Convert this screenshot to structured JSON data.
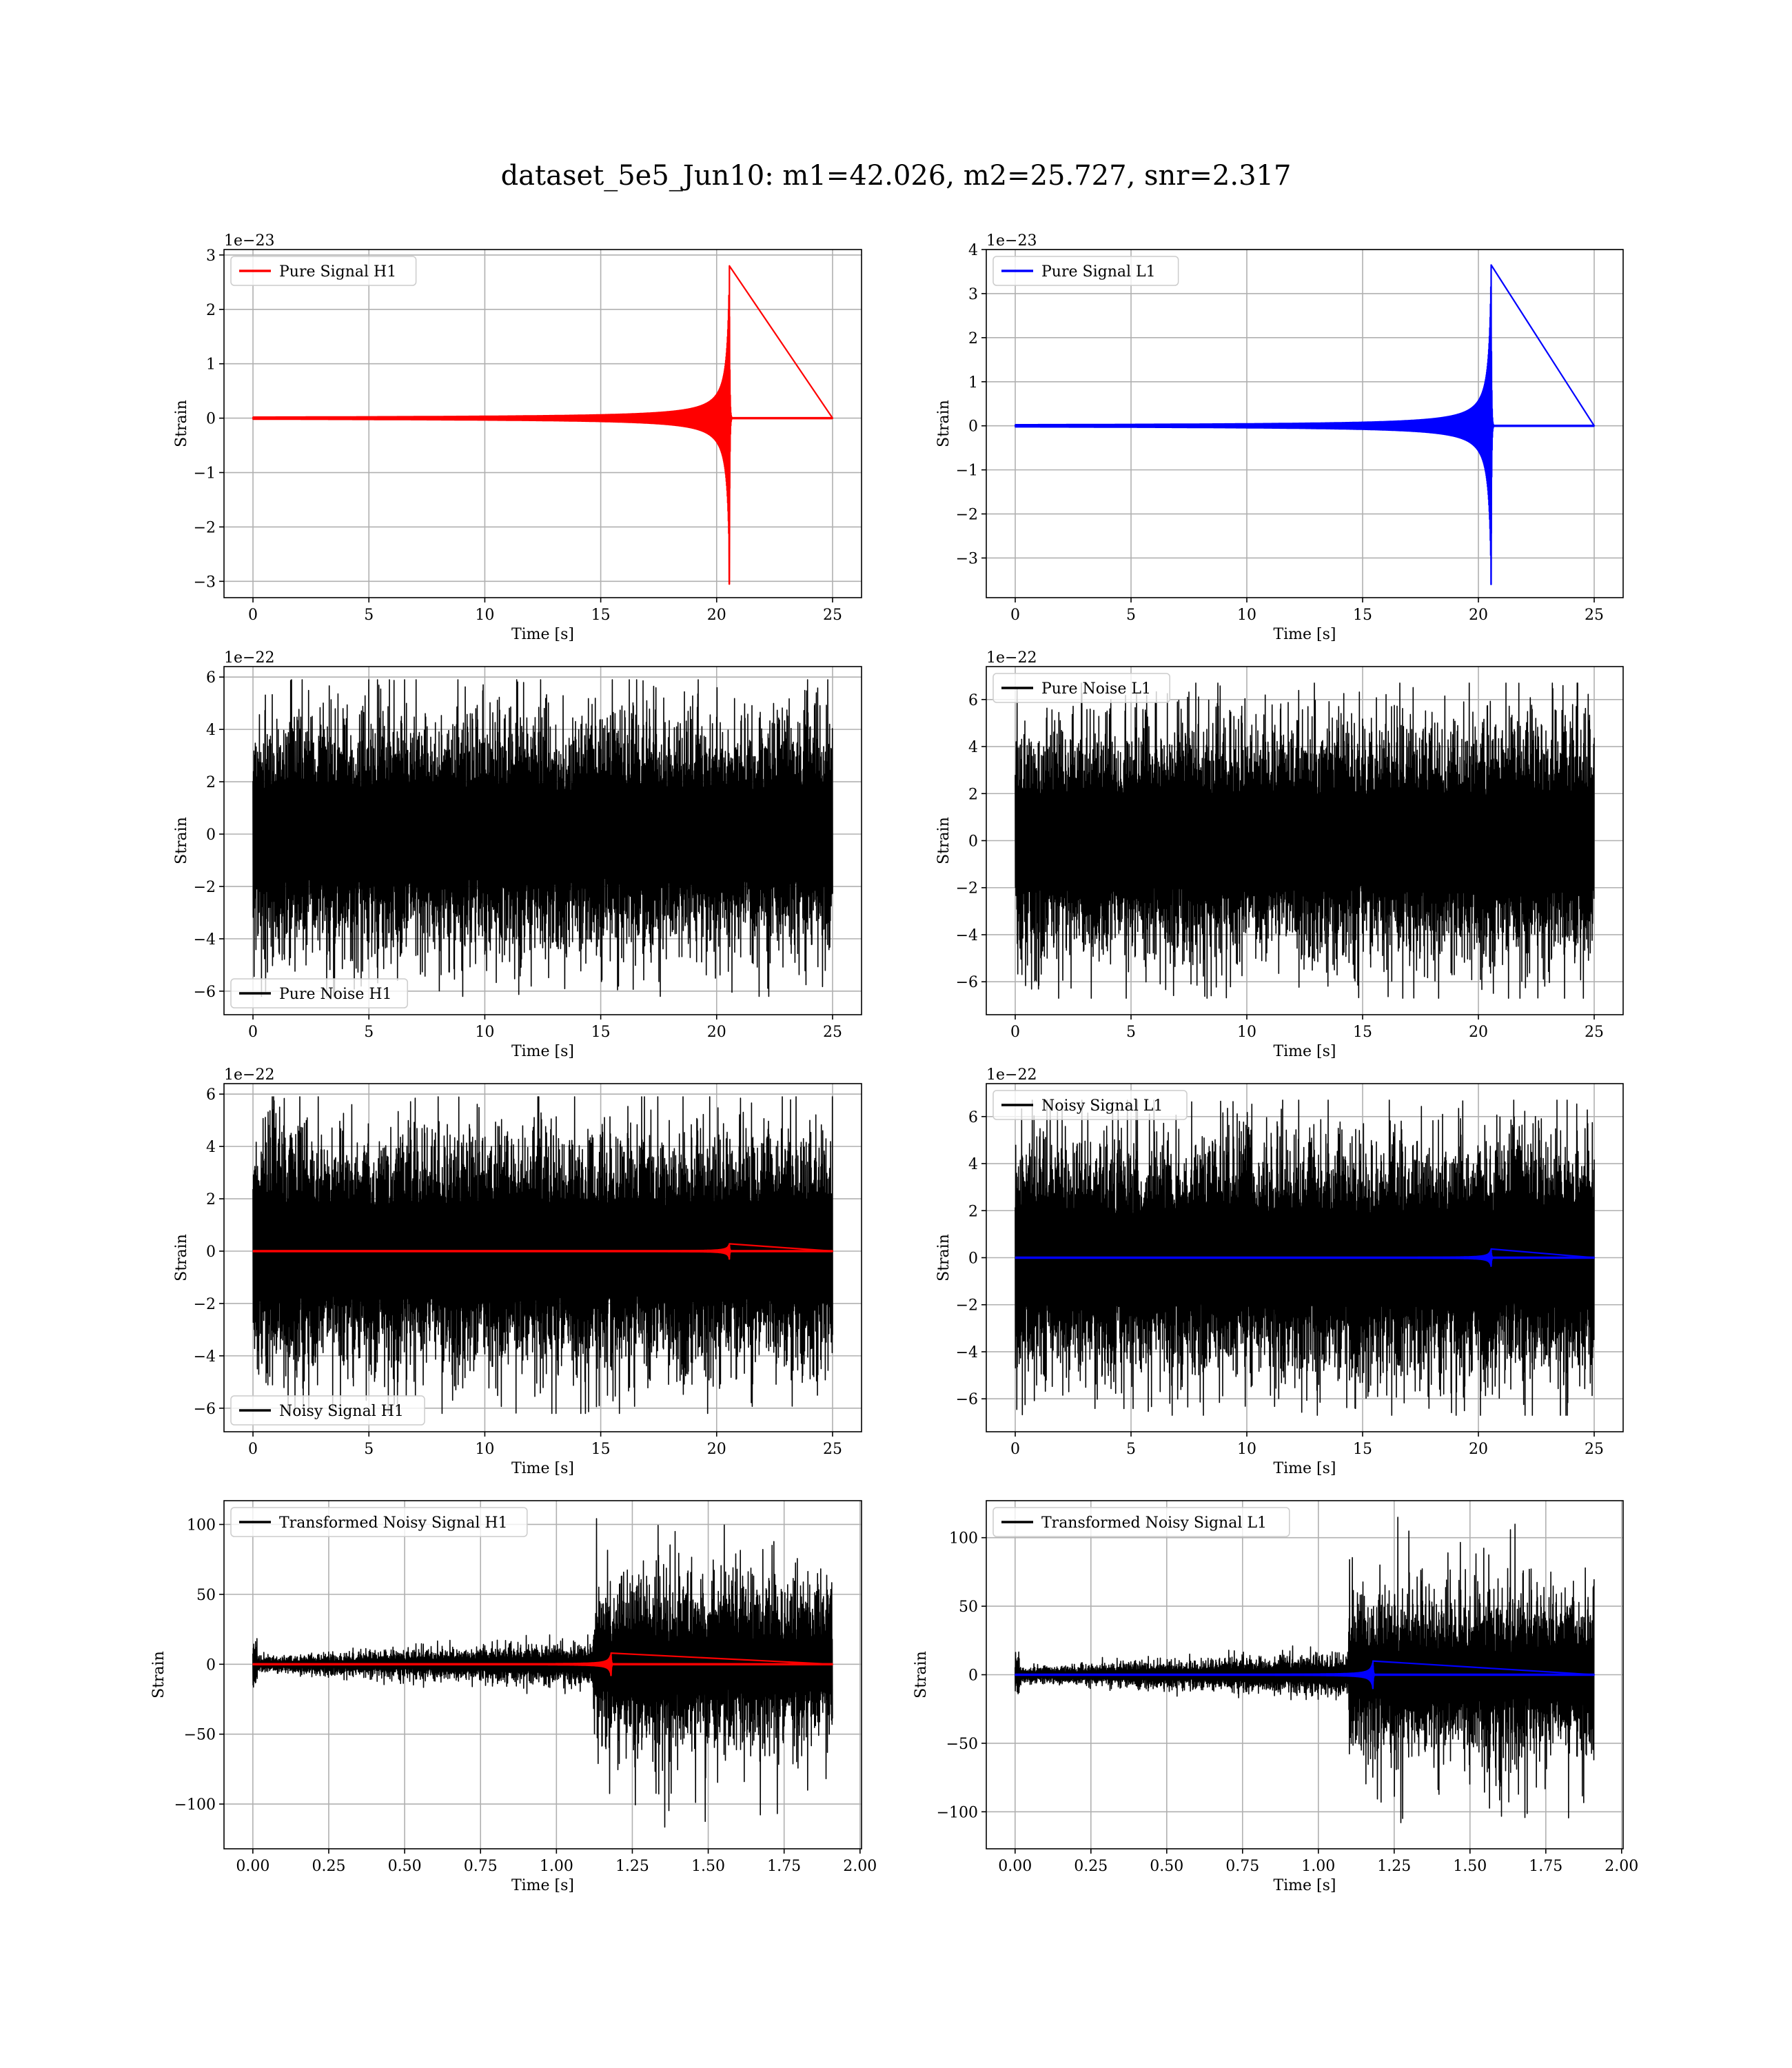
{
  "figure": {
    "suptitle": "dataset_5e5_Jun10: m1=42.026, m2=25.727, snr=2.317"
  },
  "colors": {
    "signal_h1": "#ff0000",
    "signal_l1": "#0000ff",
    "noise": "#000000",
    "grid": "#b0b0b0"
  },
  "chart_data": [
    {
      "type": "line",
      "legend": "Pure Signal H1",
      "legend_loc": "upper left",
      "xlabel": "Time [s]",
      "ylabel": "Strain",
      "offset_text": "1e−23",
      "grid": true,
      "xlim": [
        -1.25,
        26.25
      ],
      "ylim": [
        -3.3,
        3.1
      ],
      "xticks": [
        0,
        5,
        10,
        15,
        20,
        25
      ],
      "xtick_labels": [
        "0",
        "5",
        "10",
        "15",
        "20",
        "25"
      ],
      "yticks": [
        -3,
        -2,
        -1,
        0,
        1,
        2,
        3
      ],
      "ytick_labels": [
        "−3",
        "−2",
        "−1",
        "0",
        "1",
        "2",
        "3"
      ],
      "series": [
        {
          "kind": "chirp",
          "color": "#ff0000",
          "x_start": 0,
          "x_end": 25,
          "merger_time": 20.55,
          "peak_amplitude": 2.8,
          "peak_min": -3.05
        }
      ]
    },
    {
      "type": "line",
      "legend": "Pure Signal L1",
      "legend_loc": "upper left",
      "xlabel": "Time [s]",
      "ylabel": "Strain",
      "offset_text": "1e−23",
      "grid": true,
      "xlim": [
        -1.25,
        26.25
      ],
      "ylim": [
        -3.9,
        4.0
      ],
      "xticks": [
        0,
        5,
        10,
        15,
        20,
        25
      ],
      "xtick_labels": [
        "0",
        "5",
        "10",
        "15",
        "20",
        "25"
      ],
      "yticks": [
        -3,
        -2,
        -1,
        0,
        1,
        2,
        3,
        4
      ],
      "ytick_labels": [
        "−3",
        "−2",
        "−1",
        "0",
        "1",
        "2",
        "3",
        "4"
      ],
      "series": [
        {
          "kind": "chirp",
          "color": "#0000ff",
          "x_start": 0,
          "x_end": 25,
          "merger_time": 20.55,
          "peak_amplitude": 3.65,
          "peak_min": -3.6
        }
      ]
    },
    {
      "type": "line",
      "legend": "Pure Noise H1",
      "legend_loc": "lower left",
      "xlabel": "Time [s]",
      "ylabel": "Strain",
      "offset_text": "1e−22",
      "grid": true,
      "xlim": [
        -1.25,
        26.25
      ],
      "ylim": [
        -6.9,
        6.4
      ],
      "xticks": [
        0,
        5,
        10,
        15,
        20,
        25
      ],
      "xtick_labels": [
        "0",
        "5",
        "10",
        "15",
        "20",
        "25"
      ],
      "yticks": [
        -6,
        -4,
        -2,
        0,
        2,
        4,
        6
      ],
      "ytick_labels": [
        "−6",
        "−4",
        "−2",
        "0",
        "2",
        "4",
        "6"
      ],
      "series": [
        {
          "kind": "noise",
          "color": "#000000",
          "x_start": 0,
          "x_end": 25,
          "band": 3.0,
          "max": 5.9,
          "min": -6.2
        }
      ]
    },
    {
      "type": "line",
      "legend": "Pure Noise L1",
      "legend_loc": "upper left",
      "xlabel": "Time [s]",
      "ylabel": "Strain",
      "offset_text": "1e−22",
      "grid": true,
      "xlim": [
        -1.25,
        26.25
      ],
      "ylim": [
        -7.4,
        7.4
      ],
      "xticks": [
        0,
        5,
        10,
        15,
        20,
        25
      ],
      "xtick_labels": [
        "0",
        "5",
        "10",
        "15",
        "20",
        "25"
      ],
      "yticks": [
        -6,
        -4,
        -2,
        0,
        2,
        4,
        6
      ],
      "ytick_labels": [
        "−6",
        "−4",
        "−2",
        "0",
        "2",
        "4",
        "6"
      ],
      "series": [
        {
          "kind": "noise",
          "color": "#000000",
          "x_start": 0,
          "x_end": 25,
          "band": 3.4,
          "max": 6.7,
          "min": -6.7
        }
      ]
    },
    {
      "type": "line",
      "legend": "Noisy Signal H1",
      "legend_loc": "lower left",
      "xlabel": "Time [s]",
      "ylabel": "Strain",
      "offset_text": "1e−22",
      "grid": true,
      "xlim": [
        -1.25,
        26.25
      ],
      "ylim": [
        -6.9,
        6.4
      ],
      "xticks": [
        0,
        5,
        10,
        15,
        20,
        25
      ],
      "xtick_labels": [
        "0",
        "5",
        "10",
        "15",
        "20",
        "25"
      ],
      "yticks": [
        -6,
        -4,
        -2,
        0,
        2,
        4,
        6
      ],
      "ytick_labels": [
        "−6",
        "−4",
        "−2",
        "0",
        "2",
        "4",
        "6"
      ],
      "series": [
        {
          "kind": "noise",
          "color": "#000000",
          "x_start": 0,
          "x_end": 25,
          "band": 3.0,
          "max": 5.9,
          "min": -6.2
        },
        {
          "kind": "chirp",
          "color": "#ff0000",
          "x_start": 0,
          "x_end": 25,
          "merger_time": 20.55,
          "peak_amplitude": 0.28,
          "peak_min": -0.3
        }
      ]
    },
    {
      "type": "line",
      "legend": "Noisy Signal L1",
      "legend_loc": "upper left",
      "xlabel": "Time [s]",
      "ylabel": "Strain",
      "offset_text": "1e−22",
      "grid": true,
      "xlim": [
        -1.25,
        26.25
      ],
      "ylim": [
        -7.4,
        7.4
      ],
      "xticks": [
        0,
        5,
        10,
        15,
        20,
        25
      ],
      "xtick_labels": [
        "0",
        "5",
        "10",
        "15",
        "20",
        "25"
      ],
      "yticks": [
        -6,
        -4,
        -2,
        0,
        2,
        4,
        6
      ],
      "ytick_labels": [
        "−6",
        "−4",
        "−2",
        "0",
        "2",
        "4",
        "6"
      ],
      "series": [
        {
          "kind": "noise",
          "color": "#000000",
          "x_start": 0,
          "x_end": 25,
          "band": 3.4,
          "max": 6.7,
          "min": -6.7
        },
        {
          "kind": "chirp",
          "color": "#0000ff",
          "x_start": 0,
          "x_end": 25,
          "merger_time": 20.55,
          "peak_amplitude": 0.37,
          "peak_min": -0.36
        }
      ]
    },
    {
      "type": "line",
      "legend": "Transformed Noisy Signal H1",
      "legend_loc": "upper left",
      "xlabel": "Time [s]",
      "ylabel": "Strain",
      "offset_text": "",
      "grid": true,
      "xlim": [
        -0.095,
        2.005
      ],
      "ylim": [
        -132,
        117
      ],
      "xticks": [
        0.0,
        0.25,
        0.5,
        0.75,
        1.0,
        1.25,
        1.5,
        1.75,
        2.0
      ],
      "xtick_labels": [
        "0.00",
        "0.25",
        "0.50",
        "0.75",
        "1.00",
        "1.25",
        "1.50",
        "1.75",
        "2.00"
      ],
      "yticks": [
        -100,
        -50,
        0,
        50,
        100
      ],
      "ytick_labels": [
        "−100",
        "−50",
        "0",
        "50",
        "100"
      ],
      "series": [
        {
          "kind": "transformed",
          "color": "#000000",
          "x_start": 0,
          "x_end": 1.91,
          "step_time": 1.12,
          "pre_band": 6,
          "post_band": 45,
          "max": 106,
          "min": -120
        },
        {
          "kind": "chirp",
          "color": "#ff0000",
          "x_start": 0,
          "x_end": 1.91,
          "merger_time": 1.18,
          "peak_amplitude": 8,
          "peak_min": -8
        }
      ]
    },
    {
      "type": "line",
      "legend": "Transformed Noisy Signal L1",
      "legend_loc": "upper left",
      "xlabel": "Time [s]",
      "ylabel": "Strain",
      "offset_text": "",
      "grid": true,
      "xlim": [
        -0.095,
        2.005
      ],
      "ylim": [
        -127,
        127
      ],
      "xticks": [
        0.0,
        0.25,
        0.5,
        0.75,
        1.0,
        1.25,
        1.5,
        1.75,
        2.0
      ],
      "xtick_labels": [
        "0.00",
        "0.25",
        "0.50",
        "0.75",
        "1.00",
        "1.25",
        "1.50",
        "1.75",
        "2.00"
      ],
      "yticks": [
        -100,
        -50,
        0,
        50,
        100
      ],
      "ytick_labels": [
        "−100",
        "−50",
        "0",
        "50",
        "100"
      ],
      "series": [
        {
          "kind": "transformed",
          "color": "#000000",
          "x_start": 0,
          "x_end": 1.91,
          "step_time": 1.1,
          "pre_band": 6,
          "post_band": 45,
          "max": 117,
          "min": -113
        },
        {
          "kind": "chirp",
          "color": "#0000ff",
          "x_start": 0,
          "x_end": 1.91,
          "merger_time": 1.18,
          "peak_amplitude": 10,
          "peak_min": -10
        }
      ]
    }
  ]
}
